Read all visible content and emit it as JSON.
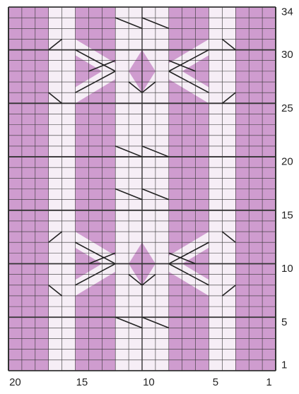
{
  "row_numbers": [
    34,
    30,
    25,
    20,
    15,
    10,
    5,
    1
  ],
  "column_numbers": [
    20,
    15,
    10,
    5,
    1
  ]
}
